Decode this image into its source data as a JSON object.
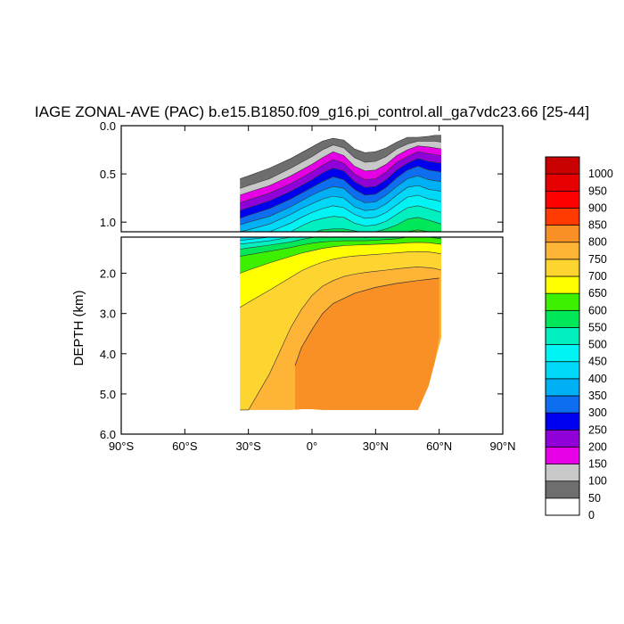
{
  "chart_data": {
    "type": "heatmap",
    "title": "IAGE ZONAL-AVE (PAC) b.e15.B1850.f09_g16.pi_control.all_ga7vdc23.66 [25-44]",
    "xlabel": "",
    "ylabel": "DEPTH (km)",
    "grid": false,
    "legend_placement": "right",
    "x_tick_labels": [
      "90°S",
      "60°S",
      "30°S",
      "0°",
      "30°N",
      "60°N",
      "90°N"
    ],
    "x_tick_values": [
      -90,
      -60,
      -30,
      0,
      30,
      60,
      90
    ],
    "xlim": [
      -90,
      90
    ],
    "upper_panel": {
      "ylim": [
        0.0,
        1.1
      ],
      "y_tick_labels": [
        "0.0",
        "0.5",
        "1.0"
      ],
      "y_tick_values": [
        0.0,
        0.5,
        1.0
      ]
    },
    "lower_panel": {
      "ylim": [
        1.1,
        6.0
      ],
      "y_tick_labels": [
        "2.0",
        "3.0",
        "4.0",
        "5.0",
        "6.0"
      ],
      "y_tick_values": [
        2.0,
        3.0,
        4.0,
        5.0,
        6.0
      ]
    },
    "data_extent": {
      "lat_min": -34,
      "lat_max": 62,
      "max_depth": 5.4
    },
    "contour_levels": [
      0,
      50,
      100,
      150,
      200,
      250,
      300,
      350,
      400,
      450,
      500,
      550,
      600,
      650,
      700,
      750,
      800,
      850,
      900,
      950,
      1000
    ],
    "contour_colors": [
      "#ffffff",
      "#6e6e6e",
      "#c8c8c8",
      "#e600e6",
      "#9000d8",
      "#0000f0",
      "#0d6ef0",
      "#00b0f5",
      "#00d8f8",
      "#00f4f4",
      "#00f0c0",
      "#00e85a",
      "#3cf000",
      "#ffff00",
      "#fed530",
      "#fdb437",
      "#f99026",
      "#ff3a00",
      "#ff0000",
      "#e60000",
      "#c80000"
    ],
    "profiles": {
      "lat": [
        -34,
        -30,
        -20,
        -10,
        -5,
        0,
        5,
        10,
        15,
        20,
        25,
        30,
        35,
        40,
        45,
        50,
        55,
        58,
        61
      ],
      "surface_top": [
        0.15,
        0.14,
        0.11,
        0.08,
        0.06,
        0.04,
        0.02,
        0.0,
        0.0,
        0.0,
        0.0,
        0.0,
        0.0,
        0.0,
        0.0,
        0.0,
        0.0,
        0.0,
        0.0
      ],
      "isopleths": [
        {
          "level": 50,
          "depth": [
            0.55,
            0.52,
            0.44,
            0.34,
            0.28,
            0.22,
            0.16,
            0.13,
            0.15,
            0.24,
            0.28,
            0.27,
            0.23,
            0.17,
            0.12,
            0.12,
            0.11,
            0.1,
            0.1
          ]
        },
        {
          "level": 100,
          "depth": [
            0.65,
            0.62,
            0.55,
            0.44,
            0.38,
            0.32,
            0.25,
            0.2,
            0.23,
            0.33,
            0.38,
            0.37,
            0.32,
            0.24,
            0.19,
            0.16,
            0.16,
            0.16,
            0.17
          ]
        },
        {
          "level": 150,
          "depth": [
            0.72,
            0.69,
            0.62,
            0.52,
            0.46,
            0.4,
            0.33,
            0.27,
            0.31,
            0.42,
            0.47,
            0.46,
            0.4,
            0.31,
            0.25,
            0.21,
            0.22,
            0.23,
            0.24
          ]
        },
        {
          "level": 200,
          "depth": [
            0.8,
            0.77,
            0.7,
            0.6,
            0.54,
            0.48,
            0.41,
            0.35,
            0.39,
            0.5,
            0.56,
            0.55,
            0.48,
            0.38,
            0.32,
            0.27,
            0.29,
            0.3,
            0.31
          ]
        },
        {
          "level": 250,
          "depth": [
            0.88,
            0.85,
            0.78,
            0.68,
            0.62,
            0.56,
            0.49,
            0.44,
            0.47,
            0.58,
            0.64,
            0.63,
            0.56,
            0.46,
            0.39,
            0.34,
            0.37,
            0.38,
            0.39
          ]
        },
        {
          "level": 300,
          "depth": [
            0.96,
            0.93,
            0.86,
            0.76,
            0.7,
            0.64,
            0.58,
            0.53,
            0.56,
            0.66,
            0.72,
            0.71,
            0.64,
            0.54,
            0.46,
            0.42,
            0.46,
            0.47,
            0.48
          ]
        },
        {
          "level": 350,
          "depth": [
            1.03,
            1.0,
            0.94,
            0.84,
            0.78,
            0.72,
            0.67,
            0.63,
            0.65,
            0.75,
            0.8,
            0.79,
            0.72,
            0.63,
            0.55,
            0.52,
            0.56,
            0.57,
            0.58
          ]
        },
        {
          "level": 400,
          "depth": [
            1.1,
            1.08,
            1.02,
            0.92,
            0.86,
            0.81,
            0.76,
            0.73,
            0.75,
            0.84,
            0.88,
            0.87,
            0.81,
            0.72,
            0.64,
            0.62,
            0.66,
            0.67,
            0.68
          ]
        },
        {
          "level": 450,
          "depth": [
            1.18,
            1.16,
            1.1,
            1.01,
            0.95,
            0.9,
            0.86,
            0.83,
            0.85,
            0.92,
            0.96,
            0.95,
            0.9,
            0.82,
            0.74,
            0.72,
            0.76,
            0.77,
            0.79
          ]
        },
        {
          "level": 500,
          "depth": [
            1.27,
            1.25,
            1.19,
            1.1,
            1.04,
            0.99,
            0.96,
            0.94,
            0.95,
            1.01,
            1.04,
            1.03,
            0.99,
            0.92,
            0.85,
            0.83,
            0.86,
            0.88,
            0.9
          ]
        },
        {
          "level": 550,
          "depth": [
            1.4,
            1.37,
            1.3,
            1.22,
            1.16,
            1.11,
            1.08,
            1.07,
            1.07,
            1.09,
            1.11,
            1.1,
            1.07,
            1.03,
            0.97,
            0.95,
            0.98,
            1.0,
            1.02
          ]
        },
        {
          "level": 600,
          "depth": [
            1.58,
            1.54,
            1.45,
            1.36,
            1.3,
            1.25,
            1.22,
            1.2,
            1.19,
            1.19,
            1.19,
            1.18,
            1.16,
            1.14,
            1.1,
            1.08,
            1.1,
            1.12,
            1.14
          ]
        },
        {
          "level": 650,
          "depth": [
            2.0,
            1.92,
            1.74,
            1.58,
            1.5,
            1.44,
            1.38,
            1.34,
            1.31,
            1.3,
            1.29,
            1.28,
            1.27,
            1.26,
            1.24,
            1.23,
            1.24,
            1.26,
            1.28
          ]
        },
        {
          "level": 700,
          "depth": [
            2.85,
            2.72,
            2.42,
            2.1,
            1.94,
            1.82,
            1.72,
            1.65,
            1.6,
            1.57,
            1.55,
            1.53,
            1.51,
            1.49,
            1.47,
            1.46,
            1.47,
            1.49,
            1.52
          ]
        },
        {
          "level": 750,
          "depth": [
            5.4,
            5.4,
            4.5,
            3.35,
            2.9,
            2.55,
            2.32,
            2.18,
            2.08,
            2.02,
            1.98,
            1.95,
            1.92,
            1.89,
            1.86,
            1.84,
            1.86,
            1.88,
            1.92
          ]
        }
      ],
      "deep_zone_800": {
        "lat": [
          -8,
          -5,
          0,
          5,
          10,
          20,
          30,
          40,
          50,
          55,
          58,
          60
        ],
        "top": [
          4.3,
          3.85,
          3.4,
          3.0,
          2.75,
          2.5,
          2.35,
          2.25,
          2.18,
          2.15,
          2.13,
          2.12
        ]
      },
      "bottom": {
        "lat": [
          -34,
          -25,
          -18,
          -10,
          -5,
          0,
          5,
          8,
          10,
          20,
          30,
          40,
          50,
          52,
          55,
          58,
          60
        ],
        "depth": [
          5.4,
          5.4,
          5.4,
          5.4,
          5.38,
          5.38,
          5.4,
          5.42,
          5.4,
          5.4,
          5.4,
          5.4,
          5.4,
          5.38,
          4.8,
          4.2,
          3.6
        ]
      }
    }
  }
}
